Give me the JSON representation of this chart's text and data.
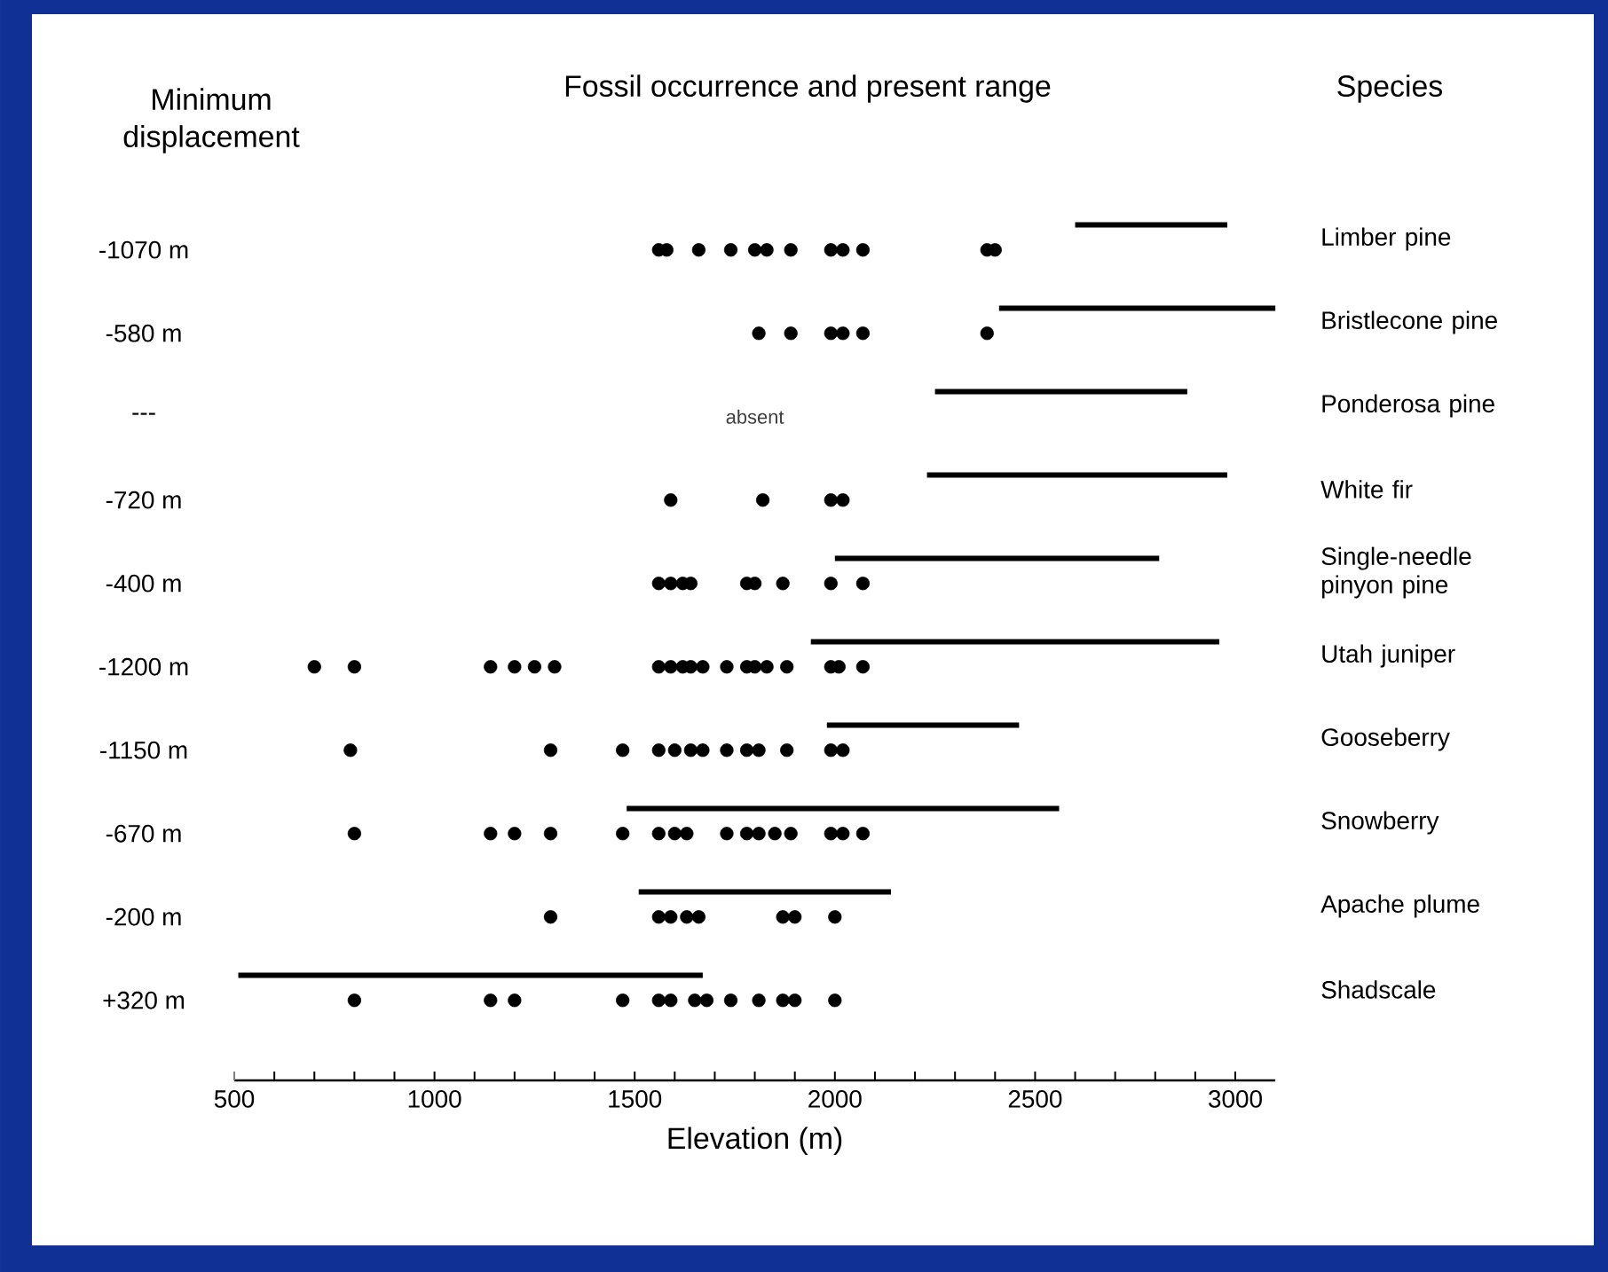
{
  "chart_data": {
    "type": "scatter",
    "orientation": "horizontal",
    "title": "Fossil occurrence and present range",
    "ylabel": "Minimum displacement",
    "y2label": "Species",
    "xlabel": "Elevation (m)",
    "categories": [
      "Limber pine",
      "Bristlecone pine",
      "Ponderosa pine",
      "White fir",
      "Single-needle pinyon pine",
      "Utah juniper",
      "Gooseberry",
      "Snowberry",
      "Apache plume",
      "Shadscale"
    ],
    "y2_categories": [
      "-1070 m",
      "-580 m",
      "---",
      "-720 m",
      "-400 m",
      "-1200 m",
      "-1150 m",
      "-670 m",
      "-200 m",
      "+320 m"
    ],
    "xlim": [
      500,
      3100
    ],
    "xticks": [
      500,
      {
        "value": 600,
        "label": null
      },
      {
        "value": 700,
        "label": null
      },
      {
        "value": 800,
        "label": null
      },
      {
        "value": 900,
        "label": null
      },
      1000,
      {
        "value": 1100,
        "label": null
      },
      {
        "value": 1200,
        "label": null
      },
      {
        "value": 1300,
        "label": null
      },
      {
        "value": 1400,
        "label": null
      },
      1500,
      {
        "value": 1600,
        "label": null
      },
      {
        "value": 1700,
        "label": null
      },
      {
        "value": 1800,
        "label": null
      },
      {
        "value": 1900,
        "label": null
      },
      2000,
      {
        "value": 2100,
        "label": null
      },
      {
        "value": 2200,
        "label": null
      },
      {
        "value": 2300,
        "label": null
      },
      {
        "value": 2400,
        "label": null
      },
      2500,
      {
        "value": 2600,
        "label": null
      },
      {
        "value": 2700,
        "label": null
      },
      {
        "value": 2800,
        "label": null
      },
      {
        "value": 2900,
        "label": null
      },
      3000
    ],
    "series": [
      {
        "type": "bar",
        "color": "#000000",
        "base": [
          2600,
          2410,
          2250,
          2230,
          2000,
          1940,
          1980,
          1480,
          1510,
          510
        ],
        "values": [
          380,
          690,
          630,
          750,
          810,
          1020,
          480,
          1080,
          630,
          1160
        ]
      },
      {
        "type": "scatter",
        "color": "#000000",
        "marker": "circle",
        "x": [
          "Limber pine",
          "Limber pine",
          "Limber pine",
          "Limber pine",
          "Limber pine",
          "Limber pine",
          "Limber pine",
          "Limber pine",
          "Limber pine",
          "Limber pine",
          "Limber pine",
          "Limber pine",
          "Bristlecone pine",
          "Bristlecone pine",
          "Bristlecone pine",
          "Bristlecone pine",
          "Bristlecone pine",
          "Bristlecone pine",
          "White fir",
          "White fir",
          "White fir",
          "White fir",
          "Single-needle pinyon pine",
          "Single-needle pinyon pine",
          "Single-needle pinyon pine",
          "Single-needle pinyon pine",
          "Single-needle pinyon pine",
          "Single-needle pinyon pine",
          "Single-needle pinyon pine",
          "Single-needle pinyon pine",
          "Single-needle pinyon pine",
          "Utah juniper",
          "Utah juniper",
          "Utah juniper",
          "Utah juniper",
          "Utah juniper",
          "Utah juniper",
          "Utah juniper",
          "Utah juniper",
          "Utah juniper",
          "Utah juniper",
          "Utah juniper",
          "Utah juniper",
          "Utah juniper",
          "Utah juniper",
          "Utah juniper",
          "Utah juniper",
          "Utah juniper",
          "Utah juniper",
          "Utah juniper",
          "Gooseberry",
          "Gooseberry",
          "Gooseberry",
          "Gooseberry",
          "Gooseberry",
          "Gooseberry",
          "Gooseberry",
          "Gooseberry",
          "Gooseberry",
          "Gooseberry",
          "Gooseberry",
          "Gooseberry",
          "Gooseberry",
          "Snowberry",
          "Snowberry",
          "Snowberry",
          "Snowberry",
          "Snowberry",
          "Snowberry",
          "Snowberry",
          "Snowberry",
          "Snowberry",
          "Snowberry",
          "Snowberry",
          "Snowberry",
          "Snowberry",
          "Snowberry",
          "Snowberry",
          "Snowberry",
          "Apache plume",
          "Apache plume",
          "Apache plume",
          "Apache plume",
          "Apache plume",
          "Apache plume",
          "Apache plume",
          "Apache plume",
          "Shadscale",
          "Shadscale",
          "Shadscale",
          "Shadscale",
          "Shadscale",
          "Shadscale",
          "Shadscale",
          "Shadscale",
          "Shadscale",
          "Shadscale",
          "Shadscale",
          "Shadscale",
          "Shadscale"
        ],
        "values": [
          1560,
          1580,
          1660,
          1740,
          1800,
          1830,
          1890,
          1990,
          2020,
          2070,
          2380,
          2400,
          1810,
          1890,
          1990,
          2020,
          2070,
          2380,
          1590,
          1820,
          1990,
          2020,
          1560,
          1590,
          1620,
          1640,
          1780,
          1800,
          1870,
          1990,
          2070,
          700,
          800,
          1140,
          1200,
          1250,
          1300,
          1560,
          1590,
          1620,
          1640,
          1670,
          1730,
          1780,
          1800,
          1830,
          1880,
          1990,
          2010,
          2070,
          790,
          1290,
          1470,
          1560,
          1600,
          1640,
          1670,
          1730,
          1780,
          1810,
          1880,
          1990,
          2020,
          800,
          1140,
          1200,
          1290,
          1470,
          1560,
          1600,
          1630,
          1730,
          1780,
          1810,
          1850,
          1890,
          1990,
          2020,
          2070,
          1290,
          1560,
          1590,
          1630,
          1660,
          1870,
          1900,
          2000,
          800,
          1140,
          1200,
          1470,
          1560,
          1590,
          1650,
          1680,
          1740,
          1810,
          1870,
          1900,
          2000
        ]
      }
    ],
    "annotations": [
      "absent"
    ]
  }
}
